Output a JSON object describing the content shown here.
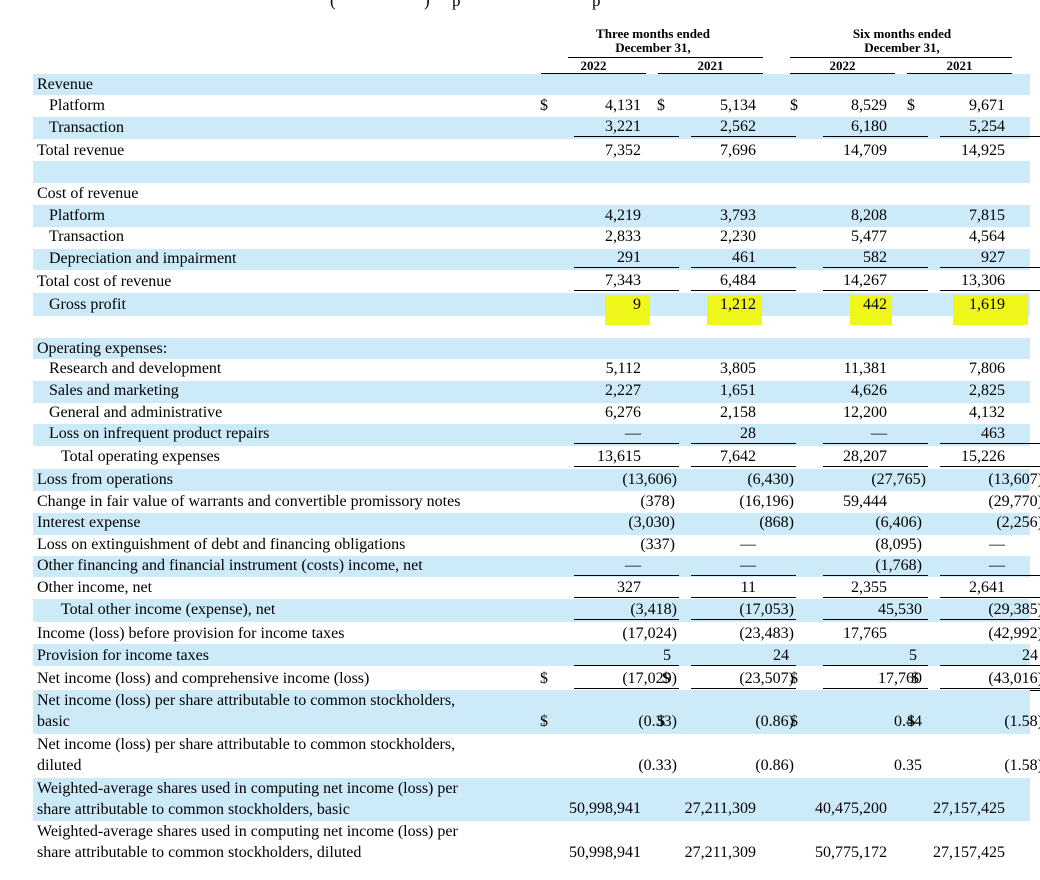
{
  "top_text": [
    "(",
    ")",
    "p",
    "p"
  ],
  "header": {
    "three_months": [
      "Three months ended",
      "December 31,"
    ],
    "six_months": [
      "Six months ended",
      "December 31,"
    ],
    "years": [
      "2022",
      "2021",
      "2022",
      "2021"
    ]
  },
  "currency_symbol": "$",
  "rows": [
    {
      "label": "Revenue",
      "values": [
        "",
        "",
        "",
        ""
      ]
    },
    {
      "label": "Platform",
      "values": [
        "4,131",
        "5,134",
        "8,529",
        "9,671"
      ],
      "currency": [
        true,
        true,
        true,
        true
      ]
    },
    {
      "label": "Transaction",
      "values": [
        "3,221",
        "2,562",
        "6,180",
        "5,254"
      ]
    },
    {
      "label": "Total revenue",
      "values": [
        "7,352",
        "7,696",
        "14,709",
        "14,925"
      ]
    },
    {
      "label": "",
      "values": [
        "",
        "",
        "",
        ""
      ]
    },
    {
      "label": "Cost of revenue",
      "values": [
        "",
        "",
        "",
        ""
      ]
    },
    {
      "label": "Platform",
      "values": [
        "4,219",
        "3,793",
        "8,208",
        "7,815"
      ]
    },
    {
      "label": "Transaction",
      "values": [
        "2,833",
        "2,230",
        "5,477",
        "4,564"
      ]
    },
    {
      "label": "Depreciation and impairment",
      "values": [
        "291",
        "461",
        "582",
        "927"
      ]
    },
    {
      "label": "Total cost of revenue",
      "values": [
        "7,343",
        "6,484",
        "14,267",
        "13,306"
      ]
    },
    {
      "label": "Gross profit",
      "values": [
        "9",
        "1,212",
        "442",
        "1,619"
      ],
      "highlighted": true
    },
    {
      "label": "",
      "values": [
        "",
        "",
        "",
        ""
      ]
    },
    {
      "label": "Operating expenses:",
      "values": [
        "",
        "",
        "",
        ""
      ]
    },
    {
      "label": "Research and development",
      "values": [
        "5,112",
        "3,805",
        "11,381",
        "7,806"
      ]
    },
    {
      "label": "Sales and marketing",
      "values": [
        "2,227",
        "1,651",
        "4,626",
        "2,825"
      ]
    },
    {
      "label": "General and administrative",
      "values": [
        "6,276",
        "2,158",
        "12,200",
        "4,132"
      ]
    },
    {
      "label": "Loss on infrequent product repairs",
      "values": [
        "—",
        "28",
        "—",
        "463"
      ]
    },
    {
      "label": "Total operating expenses",
      "values": [
        "13,615",
        "7,642",
        "28,207",
        "15,226"
      ]
    },
    {
      "label": "Loss from operations",
      "values": [
        "(13,606)",
        "(6,430)",
        "(27,765)",
        "(13,607)"
      ]
    },
    {
      "label": "Change in fair value of warrants and convertible promissory notes",
      "values": [
        "(378)",
        "(16,196)",
        "59,444",
        "(29,770)"
      ]
    },
    {
      "label": "Interest expense",
      "values": [
        "(3,030)",
        "(868)",
        "(6,406)",
        "(2,256)"
      ]
    },
    {
      "label": "Loss on extinguishment of debt and financing obligations",
      "values": [
        "(337)",
        "—",
        "(8,095)",
        "—"
      ]
    },
    {
      "label": "Other financing and financial instrument (costs) income, net",
      "values": [
        "—",
        "—",
        "(1,768)",
        "—"
      ]
    },
    {
      "label": "Other income, net",
      "values": [
        "327",
        "11",
        "2,355",
        "2,641"
      ]
    },
    {
      "label": "Total other income (expense), net",
      "values": [
        "(3,418)",
        "(17,053)",
        "45,530",
        "(29,385)"
      ]
    },
    {
      "label": "Income (loss) before provision for income taxes",
      "values": [
        "(17,024)",
        "(23,483)",
        "17,765",
        "(42,992)"
      ]
    },
    {
      "label": "Provision for income taxes",
      "values": [
        "5",
        "24",
        "5",
        "24"
      ]
    },
    {
      "label": "Net income (loss) and comprehensive income (loss)",
      "values": [
        "(17,029)",
        "(23,507)",
        "17,760",
        "(43,016)"
      ],
      "currency": [
        true,
        true,
        true,
        true
      ]
    },
    {
      "label": [
        "Net income (loss) per share attributable to common stockholders,",
        "basic"
      ],
      "values": [
        "(0.33)",
        "(0.86)",
        "0.44",
        "(1.58)"
      ],
      "currency": [
        true,
        true,
        true,
        true
      ]
    },
    {
      "label": [
        "Net income (loss) per share attributable to common stockholders,",
        "diluted"
      ],
      "values": [
        "(0.33)",
        "(0.86)",
        "0.35",
        "(1.58)"
      ]
    },
    {
      "label": [
        "Weighted-average shares used in computing net income (loss) per",
        "share attributable to common stockholders, basic"
      ],
      "values": [
        "50,998,941",
        "27,211,309",
        "40,475,200",
        "27,157,425"
      ]
    },
    {
      "label": [
        "Weighted-average shares used in computing net income (loss) per",
        "share attributable to common stockholders, diluted"
      ],
      "values": [
        "50,998,941",
        "27,211,309",
        "50,775,172",
        "27,157,425"
      ]
    }
  ],
  "highlight_color": "#eef61a",
  "row_shade_color": "#cdeaf8"
}
